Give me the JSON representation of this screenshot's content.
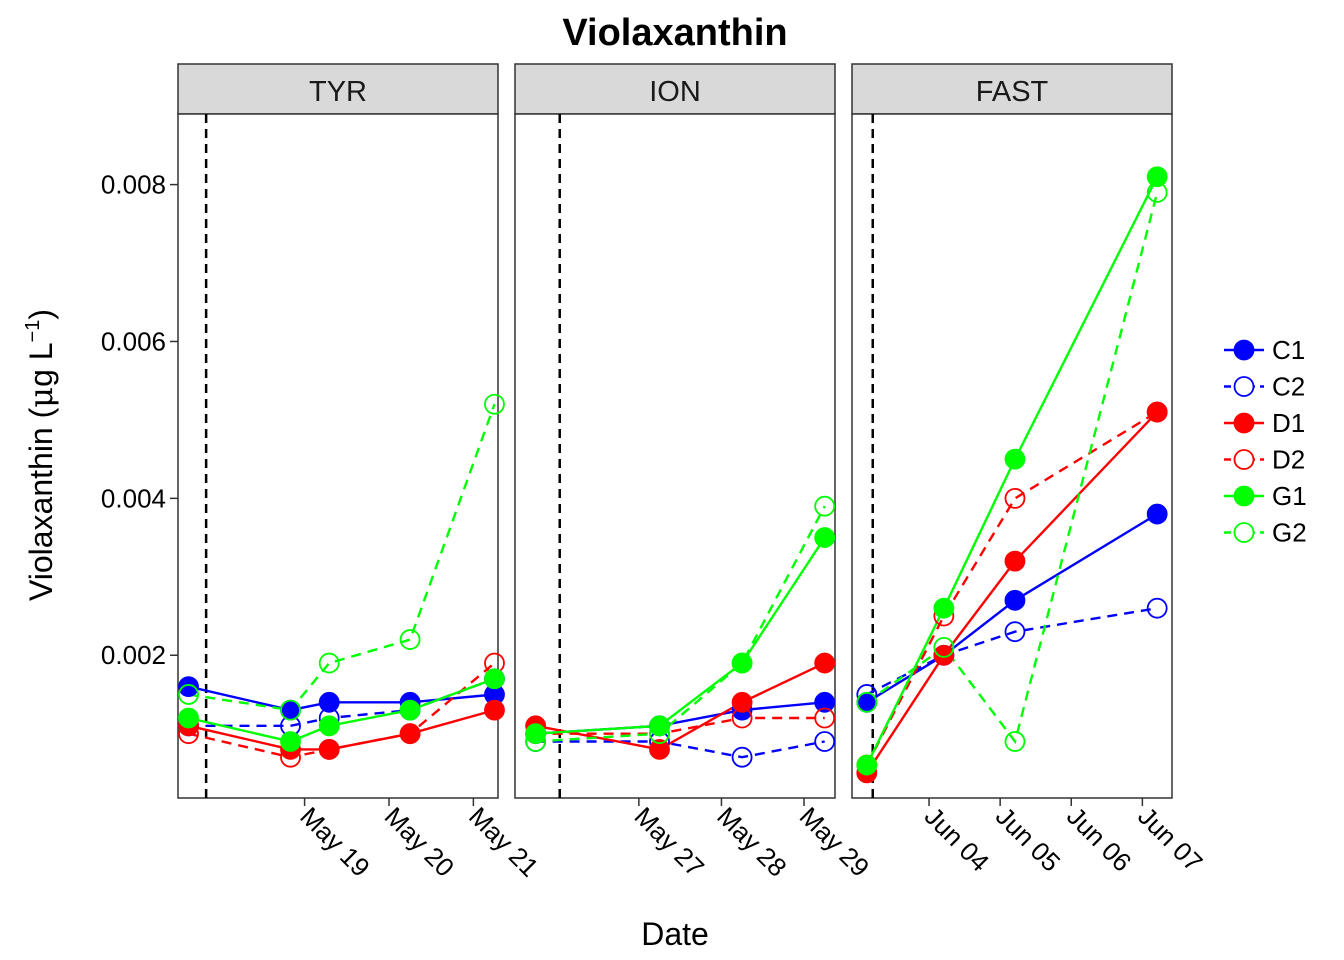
{
  "chart_data": {
    "type": "line",
    "title": "Violaxanthin",
    "xlabel": "Date",
    "ylabel": "Violaxanthin (μg L⁻¹)",
    "ylabel_parts": {
      "main": "Violaxanthin (",
      "mu": "μ",
      "g": "g L",
      "sup": "−1",
      "close": ")"
    },
    "ylim": [
      0.00018,
      0.0089
    ],
    "y_ticks": [
      "0.002",
      "0.004",
      "0.006",
      "0.008"
    ],
    "y_tick_values": [
      0.002,
      0.004,
      0.006,
      0.008
    ],
    "legend_position": "right",
    "grid": false,
    "series_styles": [
      {
        "name": "C1",
        "color": "#0000ff",
        "filled": true,
        "dashed": false
      },
      {
        "name": "C2",
        "color": "#0000ff",
        "filled": false,
        "dashed": true
      },
      {
        "name": "D1",
        "color": "#ff0000",
        "filled": true,
        "dashed": false
      },
      {
        "name": "D2",
        "color": "#ff0000",
        "filled": false,
        "dashed": true
      },
      {
        "name": "G1",
        "color": "#00ff00",
        "filled": true,
        "dashed": false
      },
      {
        "name": "G2",
        "color": "#00ff00",
        "filled": false,
        "dashed": true
      }
    ],
    "panels": [
      {
        "name": "TYR",
        "xlim": [
          "2018-05-17T12:00",
          "2018-05-21T07:00"
        ],
        "x_ticks": [
          {
            "date": "2018-05-19T00:00",
            "label": "May 19"
          },
          {
            "date": "2018-05-20T00:00",
            "label": "May 20"
          },
          {
            "date": "2018-05-21T00:00",
            "label": "May 21"
          }
        ],
        "vline": "2018-05-17T20:00",
        "series": [
          {
            "name": "C1",
            "points": [
              [
                "2018-05-17T15:00",
                0.0016
              ],
              [
                "2018-05-18T20:00",
                0.0013
              ],
              [
                "2018-05-19T07:00",
                0.0014
              ],
              [
                "2018-05-20T06:00",
                0.0014
              ],
              [
                "2018-05-21T06:00",
                0.0015
              ]
            ]
          },
          {
            "name": "C2",
            "points": [
              [
                "2018-05-17T15:00",
                0.0011
              ],
              [
                "2018-05-18T20:00",
                0.0011
              ],
              [
                "2018-05-19T07:00",
                0.0012
              ],
              [
                "2018-05-20T06:00",
                0.0013
              ],
              [
                "2018-05-21T06:00",
                0.0017
              ]
            ]
          },
          {
            "name": "D1",
            "points": [
              [
                "2018-05-17T15:00",
                0.0011
              ],
              [
                "2018-05-18T20:00",
                0.0008
              ],
              [
                "2018-05-19T07:00",
                0.0008
              ],
              [
                "2018-05-20T06:00",
                0.001
              ],
              [
                "2018-05-21T06:00",
                0.0013
              ]
            ]
          },
          {
            "name": "D2",
            "points": [
              [
                "2018-05-17T15:00",
                0.001
              ],
              [
                "2018-05-18T20:00",
                0.0007
              ],
              [
                "2018-05-19T07:00",
                0.0008
              ],
              [
                "2018-05-20T06:00",
                0.001
              ],
              [
                "2018-05-21T06:00",
                0.0019
              ]
            ]
          },
          {
            "name": "G1",
            "points": [
              [
                "2018-05-17T15:00",
                0.0012
              ],
              [
                "2018-05-18T20:00",
                0.0009
              ],
              [
                "2018-05-19T07:00",
                0.0011
              ],
              [
                "2018-05-20T06:00",
                0.0013
              ],
              [
                "2018-05-21T06:00",
                0.0017
              ]
            ]
          },
          {
            "name": "G2",
            "points": [
              [
                "2018-05-17T15:00",
                0.0015
              ],
              [
                "2018-05-18T20:00",
                0.0013
              ],
              [
                "2018-05-19T07:00",
                0.0019
              ],
              [
                "2018-05-20T06:00",
                0.0022
              ],
              [
                "2018-05-21T06:00",
                0.0052
              ]
            ]
          }
        ]
      },
      {
        "name": "ION",
        "xlim": [
          "2018-05-25T12:00",
          "2018-05-29T09:00"
        ],
        "x_ticks": [
          {
            "date": "2018-05-27T00:00",
            "label": "May 27"
          },
          {
            "date": "2018-05-28T00:00",
            "label": "May 28"
          },
          {
            "date": "2018-05-29T00:00",
            "label": "May 29"
          }
        ],
        "vline": "2018-05-26T01:00",
        "series": [
          {
            "name": "C1",
            "points": [
              [
                "2018-05-25T18:00",
                0.001
              ],
              [
                "2018-05-27T06:00",
                0.0011
              ],
              [
                "2018-05-28T06:00",
                0.0013
              ],
              [
                "2018-05-29T06:00",
                0.0014
              ]
            ]
          },
          {
            "name": "C2",
            "points": [
              [
                "2018-05-25T18:00",
                0.0009
              ],
              [
                "2018-05-27T06:00",
                0.0009
              ],
              [
                "2018-05-28T06:00",
                0.0007
              ],
              [
                "2018-05-29T06:00",
                0.0009
              ]
            ]
          },
          {
            "name": "D1",
            "points": [
              [
                "2018-05-25T18:00",
                0.0011
              ],
              [
                "2018-05-27T06:00",
                0.0008
              ],
              [
                "2018-05-28T06:00",
                0.0014
              ],
              [
                "2018-05-29T06:00",
                0.0019
              ]
            ]
          },
          {
            "name": "D2",
            "points": [
              [
                "2018-05-25T18:00",
                0.001
              ],
              [
                "2018-05-27T06:00",
                0.001
              ],
              [
                "2018-05-28T06:00",
                0.0012
              ],
              [
                "2018-05-29T06:00",
                0.0012
              ]
            ]
          },
          {
            "name": "G1",
            "points": [
              [
                "2018-05-25T18:00",
                0.001
              ],
              [
                "2018-05-27T06:00",
                0.0011
              ],
              [
                "2018-05-28T06:00",
                0.0019
              ],
              [
                "2018-05-29T06:00",
                0.0035
              ]
            ]
          },
          {
            "name": "G2",
            "points": [
              [
                "2018-05-25T18:00",
                0.0009
              ],
              [
                "2018-05-27T06:00",
                0.001
              ],
              [
                "2018-05-28T06:00",
                0.0019
              ],
              [
                "2018-05-29T06:00",
                0.0039
              ]
            ]
          }
        ]
      },
      {
        "name": "FAST",
        "xlim": [
          "2018-06-02T22:00",
          "2018-06-07T10:00"
        ],
        "x_ticks": [
          {
            "date": "2018-06-04T00:00",
            "label": "Jun 04"
          },
          {
            "date": "2018-06-05T00:00",
            "label": "Jun 05"
          },
          {
            "date": "2018-06-06T00:00",
            "label": "Jun 06"
          },
          {
            "date": "2018-06-07T00:00",
            "label": "Jun 07"
          }
        ],
        "vline": "2018-06-03T05:00",
        "series": [
          {
            "name": "C1",
            "points": [
              [
                "2018-06-03T03:00",
                0.0014
              ],
              [
                "2018-06-04T05:00",
                0.002
              ],
              [
                "2018-06-05T05:00",
                0.0027
              ],
              [
                "2018-06-07T05:00",
                0.0038
              ]
            ]
          },
          {
            "name": "C2",
            "points": [
              [
                "2018-06-03T03:00",
                0.0015
              ],
              [
                "2018-06-04T05:00",
                0.002
              ],
              [
                "2018-06-05T05:00",
                0.0023
              ],
              [
                "2018-06-07T05:00",
                0.0026
              ]
            ]
          },
          {
            "name": "D1",
            "points": [
              [
                "2018-06-03T03:00",
                0.0005
              ],
              [
                "2018-06-04T05:00",
                0.002
              ],
              [
                "2018-06-05T05:00",
                0.0032
              ],
              [
                "2018-06-07T05:00",
                0.0051
              ]
            ]
          },
          {
            "name": "D2",
            "points": [
              [
                "2018-06-03T03:00",
                0.0006
              ],
              [
                "2018-06-04T05:00",
                0.0025
              ],
              [
                "2018-06-05T05:00",
                0.004
              ],
              [
                "2018-06-07T05:00",
                0.0051
              ]
            ]
          },
          {
            "name": "G1",
            "points": [
              [
                "2018-06-03T03:00",
                0.0006
              ],
              [
                "2018-06-04T05:00",
                0.0026
              ],
              [
                "2018-06-05T05:00",
                0.0045
              ],
              [
                "2018-06-07T05:00",
                0.0081
              ]
            ]
          },
          {
            "name": "G2",
            "points": [
              [
                "2018-06-03T03:00",
                0.0014
              ],
              [
                "2018-06-04T05:00",
                0.0021
              ],
              [
                "2018-06-05T05:00",
                0.0009
              ],
              [
                "2018-06-07T05:00",
                0.0079
              ]
            ]
          }
        ]
      }
    ]
  }
}
